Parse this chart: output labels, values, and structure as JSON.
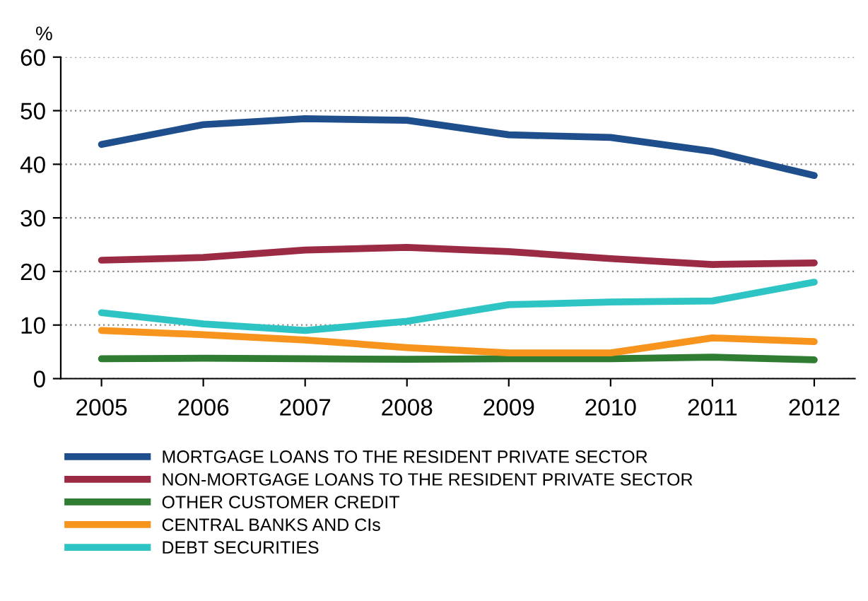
{
  "chart_data": {
    "type": "line",
    "ylabel": "%",
    "x": [
      2005,
      2006,
      2007,
      2008,
      2009,
      2010,
      2011,
      2012
    ],
    "xlim": [
      2004.6,
      2012.4
    ],
    "xticks": [
      2005,
      2006,
      2007,
      2008,
      2009,
      2010,
      2011,
      2012
    ],
    "ylim": [
      0,
      60
    ],
    "yticks": [
      0,
      10,
      20,
      30,
      40,
      50,
      60
    ],
    "grid": "y",
    "legend": "bottom",
    "series": [
      {
        "name": "MORTGAGE LOANS TO THE RESIDENT PRIVATE SECTOR",
        "color": "#1f4e8c",
        "values": [
          43.7,
          47.4,
          48.5,
          48.2,
          45.5,
          45.0,
          42.4,
          37.9
        ]
      },
      {
        "name": "NON-MORTGAGE LOANS TO THE RESIDENT PRIVATE SECTOR",
        "color": "#9b2a45",
        "values": [
          22.1,
          22.6,
          24.0,
          24.5,
          23.7,
          22.4,
          21.3,
          21.6
        ]
      },
      {
        "name": "OTHER CUSTOMER CREDIT",
        "color": "#2e7d32",
        "values": [
          3.7,
          3.8,
          3.7,
          3.6,
          3.7,
          3.7,
          4.0,
          3.5
        ]
      },
      {
        "name": "CENTRAL BANKS AND CIs",
        "color": "#f7941d",
        "values": [
          9.0,
          8.2,
          7.2,
          5.8,
          4.8,
          4.8,
          7.6,
          6.9
        ]
      },
      {
        "name": "DEBT SECURITIES",
        "color": "#2ec4c4",
        "values": [
          12.3,
          10.2,
          9.0,
          10.7,
          13.8,
          14.3,
          14.5,
          18.0
        ]
      }
    ]
  }
}
